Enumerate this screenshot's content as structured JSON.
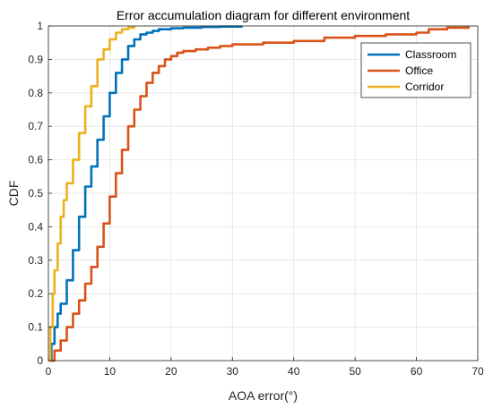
{
  "chart_data": {
    "type": "line",
    "title": "Error accumulation diagram for different environment",
    "xlabel": "AOA error(°)",
    "ylabel": "CDF",
    "xlim": [
      0,
      70
    ],
    "ylim": [
      0,
      1
    ],
    "xticks": [
      0,
      10,
      20,
      30,
      40,
      50,
      60,
      70
    ],
    "xtick_labels": [
      "0",
      "10",
      "20",
      "30",
      "40",
      "50",
      "60",
      "70"
    ],
    "yticks": [
      0,
      0.1,
      0.2,
      0.3,
      0.4,
      0.5,
      0.6,
      0.7,
      0.8,
      0.9,
      1
    ],
    "ytick_labels": [
      "0",
      "0.1",
      "0.2",
      "0.3",
      "0.4",
      "0.5",
      "0.6",
      "0.7",
      "0.8",
      "0.9",
      "1"
    ],
    "grid": true,
    "legend_position": "top-right",
    "series": [
      {
        "name": "Classroom",
        "color": "#0072BD",
        "x": [
          0,
          0.5,
          1,
          1.5,
          2,
          3,
          4,
          5,
          6,
          7,
          8,
          9,
          10,
          11,
          12,
          13,
          14,
          15,
          16,
          17,
          18,
          20,
          22,
          25,
          28,
          31.5
        ],
        "y": [
          0,
          0.05,
          0.1,
          0.14,
          0.17,
          0.24,
          0.33,
          0.43,
          0.52,
          0.58,
          0.66,
          0.73,
          0.8,
          0.86,
          0.9,
          0.94,
          0.96,
          0.975,
          0.98,
          0.985,
          0.99,
          0.993,
          0.995,
          0.997,
          0.998,
          1
        ]
      },
      {
        "name": "Office",
        "color": "#D95319",
        "x": [
          0,
          1,
          2,
          3,
          4,
          5,
          6,
          7,
          8,
          9,
          10,
          11,
          12,
          13,
          14,
          15,
          16,
          17,
          18,
          19,
          20,
          21,
          22,
          24,
          26,
          28,
          30,
          35,
          40,
          45,
          50,
          55,
          60,
          62,
          65,
          68.5
        ],
        "y": [
          0,
          0.03,
          0.06,
          0.1,
          0.14,
          0.18,
          0.23,
          0.28,
          0.34,
          0.41,
          0.49,
          0.56,
          0.63,
          0.7,
          0.75,
          0.79,
          0.83,
          0.86,
          0.88,
          0.9,
          0.91,
          0.92,
          0.925,
          0.93,
          0.935,
          0.94,
          0.945,
          0.95,
          0.955,
          0.965,
          0.97,
          0.975,
          0.98,
          0.99,
          0.995,
          1
        ]
      },
      {
        "name": "Corridor",
        "color": "#EDB120",
        "x": [
          0,
          0.3,
          0.7,
          1,
          1.5,
          2,
          2.5,
          3,
          4,
          5,
          6,
          7,
          8,
          9,
          10,
          11,
          12,
          13,
          14
        ],
        "y": [
          0,
          0.1,
          0.2,
          0.27,
          0.35,
          0.43,
          0.48,
          0.53,
          0.6,
          0.68,
          0.76,
          0.82,
          0.9,
          0.93,
          0.96,
          0.98,
          0.99,
          0.995,
          1
        ]
      }
    ]
  }
}
